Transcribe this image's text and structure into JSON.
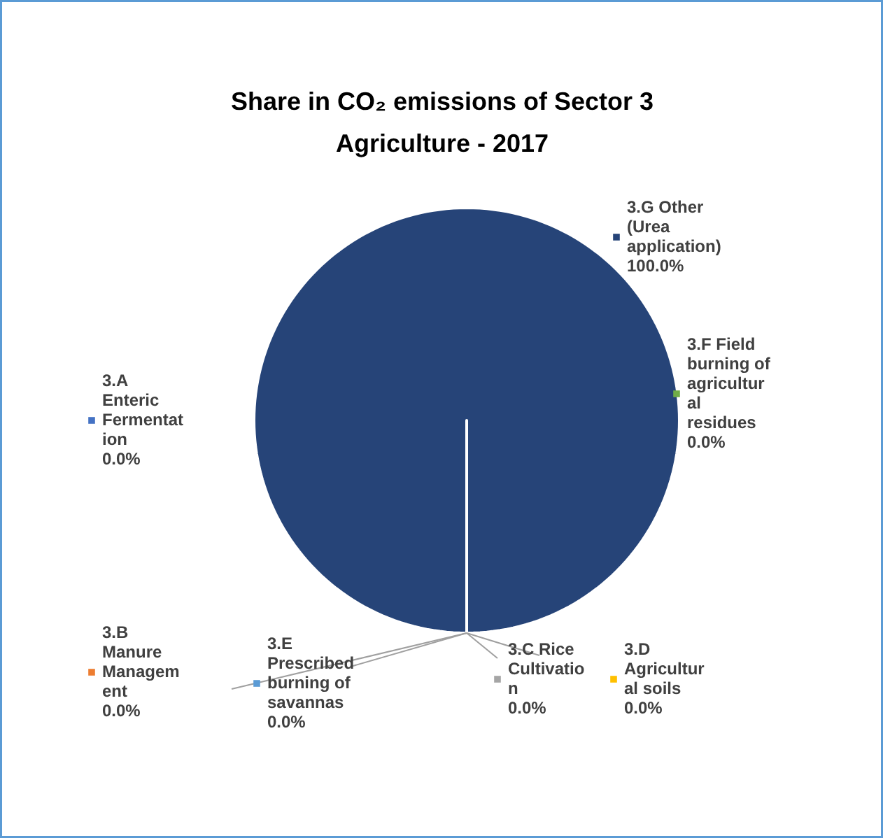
{
  "chart_data": {
    "type": "pie",
    "title": "Share in CO₂ emissions of Sector 3 Agriculture - 2017",
    "categories": [
      "3.A Enteric Fermentation",
      "3.B Manure Management",
      "3.C Rice Cultivation",
      "3.D Agricultural soils",
      "3.E Prescribed burning of savannas",
      "3.F Field burning of agricultural residues",
      "3.G Other (Urea application)"
    ],
    "values": [
      0,
      0,
      0,
      0,
      0,
      0,
      100
    ],
    "colors": [
      "#4472c4",
      "#ed7d31",
      "#a5a5a5",
      "#ffc000",
      "#5b9bd5",
      "#70ad47",
      "#264478"
    ],
    "value_labels": [
      "0.0%",
      "0.0%",
      "0.0%",
      "0.0%",
      "0.0%",
      "0.0%",
      "100.0%"
    ]
  }
}
